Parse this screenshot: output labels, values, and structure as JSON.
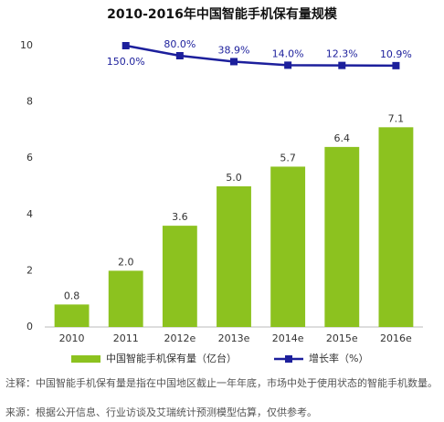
{
  "chart_data": {
    "type": "bar",
    "title": "2010-2016年中国智能手机保有量规模",
    "categories": [
      "2010",
      "2011",
      "2012e",
      "2013e",
      "2014e",
      "2015e",
      "2016e"
    ],
    "series": [
      {
        "name": "中国智能手机保有量（亿台）",
        "type": "bar",
        "color": "#8cc21f",
        "values": [
          0.8,
          2.0,
          3.6,
          5.0,
          5.7,
          6.4,
          7.1
        ],
        "value_labels": [
          "0.8",
          "2.0",
          "3.6",
          "5.0",
          "5.7",
          "6.4",
          "7.1"
        ]
      },
      {
        "name": "增长率（%）",
        "type": "line",
        "color": "#1c1f9c",
        "axis": "y2",
        "values": [
          null,
          150.0,
          80.0,
          38.9,
          14.0,
          12.3,
          10.9
        ],
        "value_labels": [
          null,
          "150.0%",
          "80.0%",
          "38.9%",
          "14.0%",
          "12.3%",
          "10.9%"
        ]
      }
    ],
    "ylim": [
      0,
      10
    ],
    "yticks": [
      0,
      2,
      4,
      6,
      8,
      10
    ],
    "y2lim": [
      -1810,
      150
    ],
    "legend": "bottom",
    "notes": [
      "注释：中国智能手机保有量是指在中国地区截止一年年底，市场中处于使用状态的智能手机数量。",
      "来源：根据公开信息、行业访谈及艾瑞统计预测模型估算，仅供参考。"
    ]
  }
}
